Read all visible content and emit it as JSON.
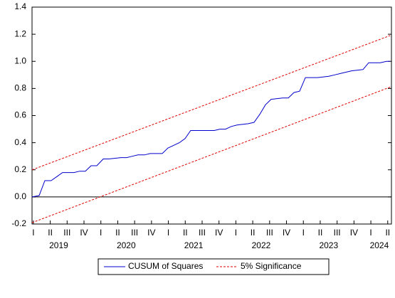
{
  "chart_data": {
    "type": "line",
    "ylim": [
      -0.2,
      1.4
    ],
    "yticks": [
      {
        "value": -0.2,
        "label": "-0.2"
      },
      {
        "value": 0,
        "label": "0.0"
      },
      0.2,
      0.4,
      0.6,
      0.8,
      {
        "value": 1,
        "label": "1.0"
      },
      1.2,
      1.4
    ],
    "xlim": [
      -0.08,
      21.22
    ],
    "xticks": [
      {
        "value": 0,
        "label": "I"
      },
      {
        "value": 1,
        "label": "II"
      },
      {
        "value": 2,
        "label": "III"
      },
      {
        "value": 3,
        "label": "IV"
      },
      {
        "value": 4,
        "label": "I"
      },
      {
        "value": 5,
        "label": "II"
      },
      {
        "value": 6,
        "label": "III"
      },
      {
        "value": 7,
        "label": "IV"
      },
      {
        "value": 8,
        "label": "I"
      },
      {
        "value": 9,
        "label": "II"
      },
      {
        "value": 10,
        "label": "III"
      },
      {
        "value": 11,
        "label": "IV"
      },
      {
        "value": 12,
        "label": "I"
      },
      {
        "value": 13,
        "label": "II"
      },
      {
        "value": 14,
        "label": "III"
      },
      {
        "value": 15,
        "label": "IV"
      },
      {
        "value": 16,
        "label": "I"
      },
      {
        "value": 17,
        "label": "II"
      },
      {
        "value": 18,
        "label": "III"
      },
      {
        "value": 19,
        "label": "IV"
      },
      {
        "value": 20,
        "label": "I"
      },
      {
        "value": 21,
        "label": "II"
      }
    ],
    "year_labels": [
      {
        "value": 1.5,
        "label": "2019"
      },
      {
        "value": 5.5,
        "label": "2020"
      },
      {
        "value": 9.5,
        "label": "2021"
      },
      {
        "value": 13.5,
        "label": "2022"
      },
      {
        "value": 17.5,
        "label": "2023"
      },
      {
        "value": 20.5,
        "label": "2024"
      }
    ],
    "hline": 0,
    "series": [
      {
        "name": "CUSUM of Squares",
        "color": "#0000cc",
        "dashed": false,
        "x": [
          -0.08,
          0.34,
          0.68,
          1.05,
          1.39,
          1.73,
          2.41,
          2.74,
          3.08,
          3.42,
          3.76,
          4.14,
          4.47,
          5.19,
          5.53,
          5.86,
          6.2,
          6.58,
          6.92,
          7.64,
          7.97,
          8.31,
          8.65,
          8.99,
          9.32,
          10.38,
          10.72,
          11.05,
          11.39,
          11.73,
          12.07,
          12.74,
          13.08,
          13.42,
          13.76,
          14.09,
          14.77,
          15.11,
          15.44,
          15.78,
          16.12,
          16.84,
          17.51,
          17.85,
          18.19,
          18.52,
          18.86,
          19.54,
          19.87,
          20.55,
          20.93,
          21.14
        ],
        "values": [
          0.0,
          0.01,
          0.12,
          0.12,
          0.15,
          0.18,
          0.18,
          0.19,
          0.19,
          0.23,
          0.23,
          0.28,
          0.28,
          0.29,
          0.29,
          0.3,
          0.31,
          0.31,
          0.32,
          0.32,
          0.36,
          0.38,
          0.4,
          0.43,
          0.49,
          0.49,
          0.49,
          0.5,
          0.5,
          0.52,
          0.53,
          0.54,
          0.55,
          0.61,
          0.68,
          0.72,
          0.73,
          0.73,
          0.77,
          0.78,
          0.88,
          0.88,
          0.89,
          0.9,
          0.91,
          0.92,
          0.93,
          0.94,
          0.99,
          0.99,
          1.0,
          1.0
        ]
      },
      {
        "name": "5% Significance",
        "color": "#e00000",
        "dashed": true,
        "x": [
          -0.08,
          21.14
        ],
        "values": [
          0.2,
          1.19
        ],
        "lower": [
          -0.19,
          0.81
        ]
      }
    ]
  }
}
